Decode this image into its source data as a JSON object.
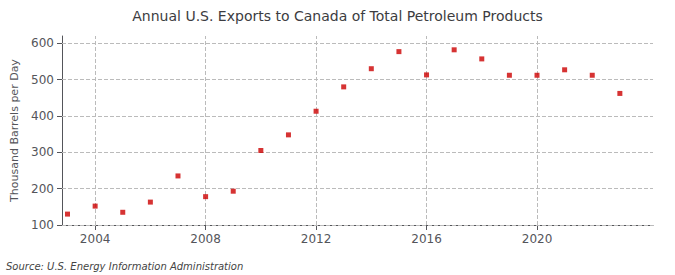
{
  "chart_data": {
    "type": "scatter",
    "title": "Annual U.S. Exports to Canada of Total Petroleum Products",
    "ylabel": "Thousand Barrels per Day",
    "source": "Source: U.S. Energy Information Administration",
    "x": [
      2003,
      2004,
      2005,
      2006,
      2007,
      2008,
      2009,
      2010,
      2011,
      2012,
      2013,
      2014,
      2015,
      2016,
      2017,
      2018,
      2019,
      2020,
      2021,
      2022,
      2023
    ],
    "values": [
      130,
      152,
      135,
      163,
      235,
      178,
      193,
      305,
      348,
      413,
      480,
      530,
      577,
      513,
      582,
      557,
      512,
      512,
      527,
      512,
      462
    ],
    "color": "#cc0000",
    "marker": "square",
    "xlim": [
      2002.8,
      2024.2
    ],
    "xticks": [
      2004,
      2008,
      2012,
      2016,
      2020
    ],
    "ylim": [
      100,
      620
    ],
    "yticks": [
      100,
      200,
      300,
      400,
      500,
      600
    ],
    "grid": true
  }
}
